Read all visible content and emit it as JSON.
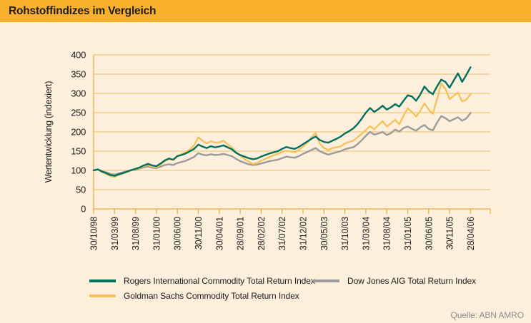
{
  "header": {
    "title": "Rohstoffindizes im Vergleich"
  },
  "source": {
    "label": "Quelle: ABN AMRO"
  },
  "colors": {
    "header_bg": "#F9B02C",
    "page_bg": "#FCEFDC",
    "grid": "#F2C87E",
    "axis": "#ECAC45",
    "text": "#1D1D1B",
    "source_text": "#8E8E8E"
  },
  "chart_data": {
    "type": "line",
    "title": "Rohstoffindizes im Vergleich",
    "xlabel": "",
    "ylabel": "Wertentwicklung (indexiert)",
    "ylim": [
      0,
      400
    ],
    "ytick_step": 50,
    "grid": true,
    "legend_position": "bottom",
    "x_tick_labels": [
      "30/10/98",
      "31/03/99",
      "31/08/99",
      "31/01/00",
      "30/06/00",
      "30/11/00",
      "30/04/01",
      "28/09/01",
      "28/02/02",
      "31/07/02",
      "31/12/02",
      "30/05/03",
      "31/10/03",
      "31/03/04",
      "31/08/04",
      "31/01/05",
      "30/06/05",
      "30/11/05",
      "28/04/06"
    ],
    "months_per_tick": 5,
    "series": [
      {
        "name": "Rogers International Commodity Total Return Index",
        "color": "#00705C",
        "values": [
          100,
          103,
          97,
          93,
          88,
          86,
          90,
          93,
          97,
          101,
          104,
          108,
          113,
          117,
          113,
          111,
          118,
          126,
          131,
          128,
          137,
          140,
          144,
          150,
          156,
          167,
          162,
          158,
          163,
          160,
          162,
          165,
          160,
          155,
          146,
          140,
          136,
          132,
          129,
          131,
          136,
          140,
          144,
          147,
          150,
          156,
          161,
          158,
          156,
          161,
          168,
          175,
          182,
          188,
          179,
          174,
          172,
          177,
          182,
          188,
          196,
          202,
          209,
          220,
          234,
          250,
          262,
          252,
          259,
          268,
          258,
          264,
          272,
          266,
          281,
          295,
          292,
          281,
          297,
          318,
          305,
          298,
          318,
          336,
          330,
          315,
          334,
          352,
          330,
          348,
          368
        ]
      },
      {
        "name": "Goldman Sachs Commodity Total Return Index",
        "color": "#F5C35C",
        "values": [
          100,
          102,
          96,
          91,
          85,
          83,
          88,
          92,
          96,
          100,
          103,
          107,
          111,
          114,
          110,
          108,
          116,
          124,
          130,
          127,
          138,
          142,
          147,
          155,
          165,
          186,
          177,
          170,
          176,
          172,
          173,
          177,
          168,
          160,
          148,
          138,
          130,
          123,
          117,
          119,
          125,
          130,
          135,
          139,
          143,
          148,
          151,
          149,
          147,
          153,
          162,
          172,
          185,
          197,
          170,
          158,
          153,
          158,
          160,
          162,
          170,
          174,
          177,
          186,
          195,
          205,
          215,
          207,
          218,
          228,
          214,
          222,
          232,
          220,
          242,
          261,
          252,
          240,
          255,
          274,
          258,
          247,
          285,
          326,
          312,
          285,
          294,
          302,
          279,
          284,
          298
        ]
      },
      {
        "name": "Dow Jones AIG Total Return Index",
        "color": "#9B9B9B",
        "values": [
          100,
          102,
          98,
          95,
          91,
          89,
          92,
          95,
          98,
          100,
          102,
          105,
          108,
          110,
          107,
          106,
          110,
          114,
          116,
          114,
          119,
          122,
          125,
          130,
          135,
          145,
          141,
          139,
          142,
          140,
          141,
          143,
          140,
          137,
          130,
          124,
          120,
          116,
          114,
          115,
          118,
          121,
          124,
          126,
          128,
          132,
          136,
          134,
          133,
          137,
          143,
          148,
          153,
          158,
          150,
          145,
          141,
          144,
          147,
          150,
          155,
          158,
          160,
          168,
          178,
          190,
          200,
          193,
          196,
          200,
          192,
          197,
          206,
          201,
          210,
          214,
          208,
          203,
          212,
          218,
          208,
          204,
          224,
          241,
          236,
          228,
          233,
          238,
          229,
          235,
          249
        ]
      }
    ]
  }
}
